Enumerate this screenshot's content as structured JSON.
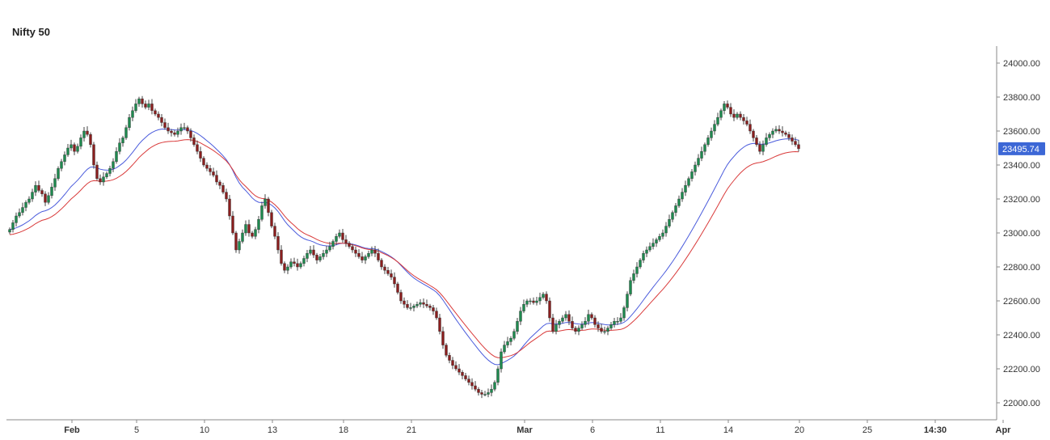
{
  "title": "Nifty 50",
  "colors": {
    "up": "#1e8a4f",
    "down": "#8b1e1e",
    "wick": "#444444",
    "ma_fast": "#4a5bdc",
    "ma_slow": "#d93a3a",
    "label_bg": "#3c67d6",
    "axis": "#888888"
  },
  "chart_data": {
    "type": "candlestick",
    "title": "Nifty 50",
    "ylim": [
      21900,
      24100
    ],
    "y_ticks": [
      "24000.00",
      "23800.00",
      "23600.00",
      "23400.00",
      "23200.00",
      "23000.00",
      "22800.00",
      "22600.00",
      "22400.00",
      "22200.00",
      "22000.00"
    ],
    "x_ticks": [
      {
        "label": "Feb",
        "bold": true,
        "index": 22
      },
      {
        "label": "5",
        "bold": false,
        "index": 42
      },
      {
        "label": "10",
        "bold": false,
        "index": 63
      },
      {
        "label": "13",
        "bold": false,
        "index": 84
      },
      {
        "label": "18",
        "bold": false,
        "index": 106
      },
      {
        "label": "21",
        "bold": false,
        "index": 127
      },
      {
        "label": "Mar",
        "bold": true,
        "index": 162
      },
      {
        "label": "6",
        "bold": false,
        "index": 183
      },
      {
        "label": "11",
        "bold": false,
        "index": 204
      },
      {
        "label": "14",
        "bold": false,
        "index": 225
      },
      {
        "label": "20",
        "bold": false,
        "index": 247
      },
      {
        "label": "25",
        "bold": false,
        "index": 268
      },
      {
        "label": "14:30",
        "bold": true,
        "index": 289
      },
      {
        "label": "Apr",
        "bold": true,
        "index": 310
      }
    ],
    "last_price": "23495.74",
    "closes": [
      23020,
      23060,
      23100,
      23120,
      23150,
      23180,
      23200,
      23240,
      23280,
      23250,
      23230,
      23180,
      23220,
      23270,
      23320,
      23380,
      23420,
      23460,
      23500,
      23520,
      23480,
      23510,
      23560,
      23600,
      23580,
      23520,
      23400,
      23320,
      23300,
      23330,
      23350,
      23380,
      23420,
      23480,
      23530,
      23560,
      23620,
      23680,
      23720,
      23760,
      23790,
      23760,
      23740,
      23760,
      23720,
      23700,
      23680,
      23650,
      23620,
      23600,
      23590,
      23580,
      23600,
      23620,
      23620,
      23600,
      23560,
      23520,
      23480,
      23440,
      23400,
      23380,
      23360,
      23340,
      23300,
      23280,
      23240,
      23200,
      23100,
      23000,
      22900,
      22950,
      23000,
      23050,
      23000,
      22980,
      23020,
      23080,
      23160,
      23200,
      23120,
      23040,
      22980,
      22900,
      22820,
      22780,
      22800,
      22830,
      22820,
      22800,
      22820,
      22850,
      22880,
      22900,
      22870,
      22840,
      22860,
      22880,
      22900,
      22920,
      22950,
      22980,
      23000,
      22960,
      22940,
      22920,
      22900,
      22880,
      22860,
      22840,
      22860,
      22880,
      22900,
      22880,
      22840,
      22800,
      22780,
      22760,
      22740,
      22700,
      22650,
      22600,
      22580,
      22560,
      22560,
      22570,
      22580,
      22590,
      22580,
      22570,
      22560,
      22540,
      22500,
      22420,
      22340,
      22280,
      22250,
      22220,
      22200,
      22180,
      22160,
      22140,
      22120,
      22100,
      22080,
      22060,
      22050,
      22050,
      22060,
      22080,
      22120,
      22200,
      22300,
      22340,
      22360,
      22380,
      22420,
      22480,
      22540,
      22580,
      22600,
      22600,
      22590,
      22600,
      22620,
      22640,
      22600,
      22500,
      22420,
      22460,
      22480,
      22500,
      22520,
      22480,
      22440,
      22420,
      22440,
      22460,
      22480,
      22520,
      22500,
      22460,
      22440,
      22420,
      22420,
      22440,
      22460,
      22480,
      22480,
      22500,
      22560,
      22640,
      22720,
      22760,
      22800,
      22840,
      22880,
      22900,
      22920,
      22940,
      22960,
      22980,
      23000,
      23040,
      23080,
      23120,
      23160,
      23200,
      23240,
      23280,
      23320,
      23360,
      23400,
      23440,
      23480,
      23520,
      23560,
      23600,
      23640,
      23680,
      23720,
      23760,
      23740,
      23700,
      23680,
      23700,
      23680,
      23660,
      23640,
      23600,
      23560,
      23520,
      23480,
      23520,
      23560,
      23580,
      23600,
      23610,
      23600,
      23590,
      23580,
      23560,
      23540,
      23520,
      23495.74
    ]
  }
}
